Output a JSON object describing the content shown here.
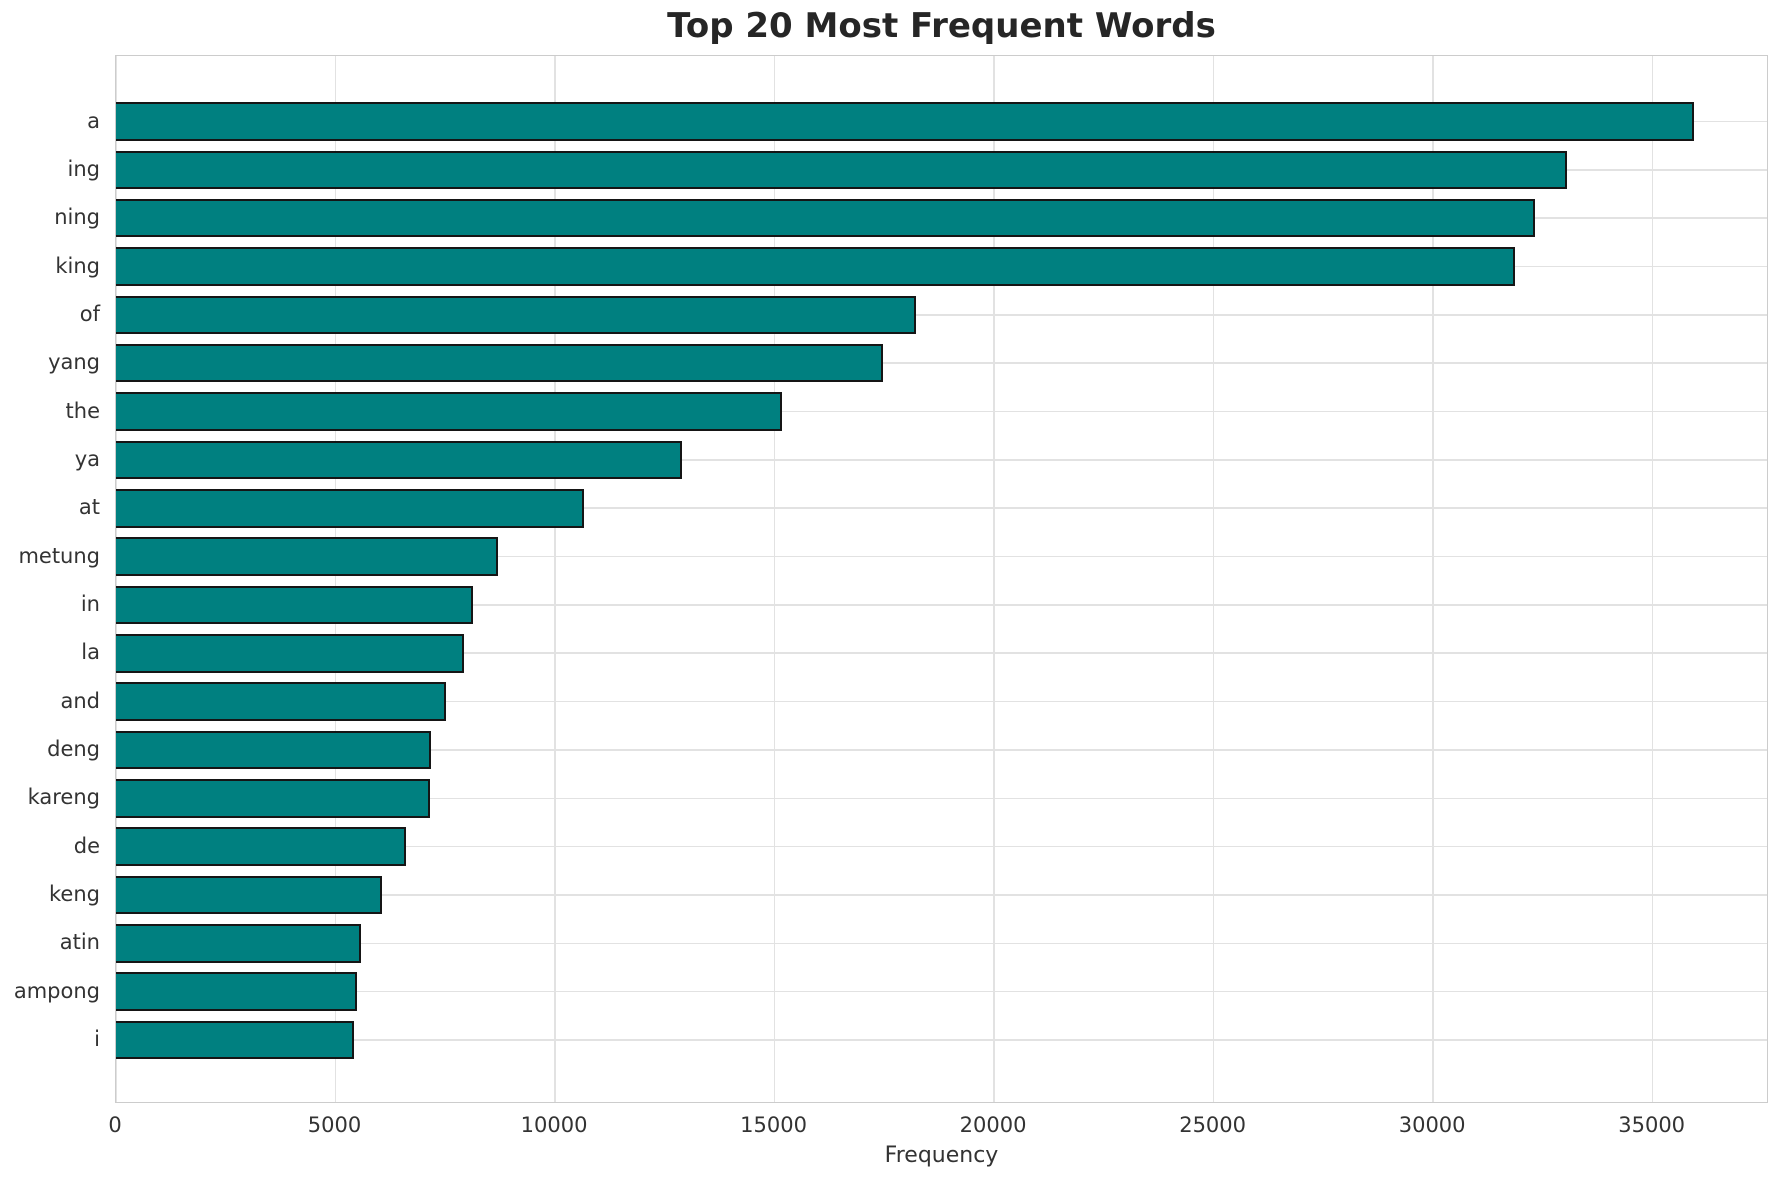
{
  "chart_data": {
    "type": "bar",
    "orientation": "horizontal",
    "title": "Top 20 Most Frequent Words",
    "xlabel": "Frequency",
    "ylabel": "",
    "categories": [
      "a",
      "ing",
      "ning",
      "king",
      "of",
      "yang",
      "the",
      "ya",
      "at",
      "metung",
      "in",
      "la",
      "and",
      "deng",
      "kareng",
      "de",
      "keng",
      "atin",
      "ampong",
      "i"
    ],
    "values": [
      35950,
      33060,
      32310,
      31860,
      18230,
      17460,
      15160,
      12890,
      10660,
      8690,
      8120,
      7915,
      7505,
      7180,
      7160,
      6595,
      6050,
      5570,
      5480,
      5410
    ],
    "xticks": [
      0,
      5000,
      10000,
      15000,
      20000,
      25000,
      30000,
      35000
    ],
    "xtick_labels": [
      "0",
      "5000",
      "10000",
      "15000",
      "20000",
      "25000",
      "30000",
      "35000"
    ],
    "xlim": [
      0,
      37650
    ],
    "grid": true,
    "legend_position": "none",
    "bar_color": "#008080",
    "bar_edge_color": "#151515",
    "grid_color": "#e2e2e2",
    "spine_color": "#cccccc",
    "tick_text_color": "#333333",
    "title_color": "#262626"
  }
}
